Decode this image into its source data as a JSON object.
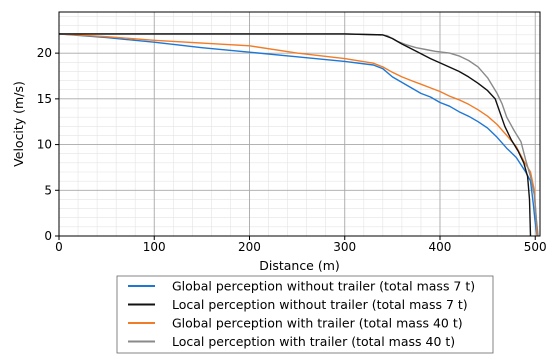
{
  "chart_data": {
    "type": "line",
    "title": "",
    "xlabel": "Distance (m)",
    "ylabel": "Velocity (m/s)",
    "xlim": [
      0,
      505
    ],
    "ylim": [
      0,
      24.5
    ],
    "x_ticks": [
      0,
      100,
      200,
      300,
      400,
      500
    ],
    "y_ticks": [
      0,
      5,
      10,
      15,
      20
    ],
    "grid": "major and minor",
    "legend_position": "below plot",
    "series": [
      {
        "name": "Global perception without trailer (total mass 7 t)",
        "color": "#1f77d4",
        "points": [
          [
            0,
            22.1
          ],
          [
            50,
            21.7
          ],
          [
            100,
            21.2
          ],
          [
            150,
            20.6
          ],
          [
            200,
            20.1
          ],
          [
            250,
            19.6
          ],
          [
            300,
            19.1
          ],
          [
            330,
            18.7
          ],
          [
            340,
            18.3
          ],
          [
            350,
            17.4
          ],
          [
            360,
            16.8
          ],
          [
            370,
            16.2
          ],
          [
            380,
            15.6
          ],
          [
            390,
            15.2
          ],
          [
            400,
            14.6
          ],
          [
            410,
            14.2
          ],
          [
            420,
            13.6
          ],
          [
            430,
            13.1
          ],
          [
            440,
            12.5
          ],
          [
            450,
            11.8
          ],
          [
            460,
            10.8
          ],
          [
            470,
            9.6
          ],
          [
            480,
            8.6
          ],
          [
            485,
            7.8
          ],
          [
            490,
            7.0
          ],
          [
            495,
            6.0
          ],
          [
            498,
            3.5
          ],
          [
            500,
            1.5
          ],
          [
            502,
            0
          ]
        ]
      },
      {
        "name": "Local perception without trailer (total mass 7 t)",
        "color": "#111111",
        "points": [
          [
            0,
            22.1
          ],
          [
            100,
            22.1
          ],
          [
            200,
            22.1
          ],
          [
            300,
            22.1
          ],
          [
            340,
            22.0
          ],
          [
            350,
            21.6
          ],
          [
            360,
            21.0
          ],
          [
            375,
            20.2
          ],
          [
            390,
            19.4
          ],
          [
            405,
            18.7
          ],
          [
            420,
            18.0
          ],
          [
            430,
            17.4
          ],
          [
            440,
            16.7
          ],
          [
            450,
            15.9
          ],
          [
            458,
            15.0
          ],
          [
            463,
            13.5
          ],
          [
            468,
            12.0
          ],
          [
            475,
            10.5
          ],
          [
            482,
            9.3
          ],
          [
            488,
            8.0
          ],
          [
            492,
            6.5
          ],
          [
            494,
            4.0
          ],
          [
            495,
            0
          ]
        ]
      },
      {
        "name": "Global perception with trailer (total mass 40 t)",
        "color": "#f07c28",
        "points": [
          [
            0,
            22.1
          ],
          [
            50,
            21.8
          ],
          [
            100,
            21.4
          ],
          [
            150,
            21.1
          ],
          [
            200,
            20.8
          ],
          [
            250,
            20.0
          ],
          [
            300,
            19.4
          ],
          [
            330,
            18.9
          ],
          [
            340,
            18.5
          ],
          [
            350,
            17.9
          ],
          [
            360,
            17.4
          ],
          [
            370,
            17.0
          ],
          [
            380,
            16.6
          ],
          [
            390,
            16.2
          ],
          [
            400,
            15.8
          ],
          [
            410,
            15.3
          ],
          [
            420,
            14.9
          ],
          [
            430,
            14.4
          ],
          [
            440,
            13.8
          ],
          [
            450,
            13.1
          ],
          [
            460,
            12.2
          ],
          [
            470,
            11.0
          ],
          [
            480,
            9.8
          ],
          [
            488,
            8.2
          ],
          [
            495,
            7.0
          ],
          [
            499,
            5.0
          ],
          [
            501,
            2.0
          ],
          [
            502,
            0
          ]
        ]
      },
      {
        "name": "Local perception with trailer (total mass 40 t)",
        "color": "#8a8a8a",
        "points": [
          [
            0,
            22.1
          ],
          [
            100,
            22.1
          ],
          [
            200,
            22.1
          ],
          [
            300,
            22.1
          ],
          [
            340,
            22.0
          ],
          [
            345,
            21.9
          ],
          [
            355,
            21.3
          ],
          [
            365,
            20.9
          ],
          [
            375,
            20.6
          ],
          [
            385,
            20.4
          ],
          [
            395,
            20.2
          ],
          [
            410,
            20.0
          ],
          [
            420,
            19.7
          ],
          [
            430,
            19.2
          ],
          [
            440,
            18.5
          ],
          [
            450,
            17.3
          ],
          [
            460,
            15.6
          ],
          [
            465,
            14.5
          ],
          [
            470,
            13.0
          ],
          [
            478,
            11.5
          ],
          [
            485,
            10.3
          ],
          [
            490,
            8.3
          ],
          [
            495,
            6.5
          ],
          [
            499,
            4.5
          ],
          [
            501,
            2.0
          ],
          [
            503,
            0
          ]
        ]
      }
    ]
  }
}
